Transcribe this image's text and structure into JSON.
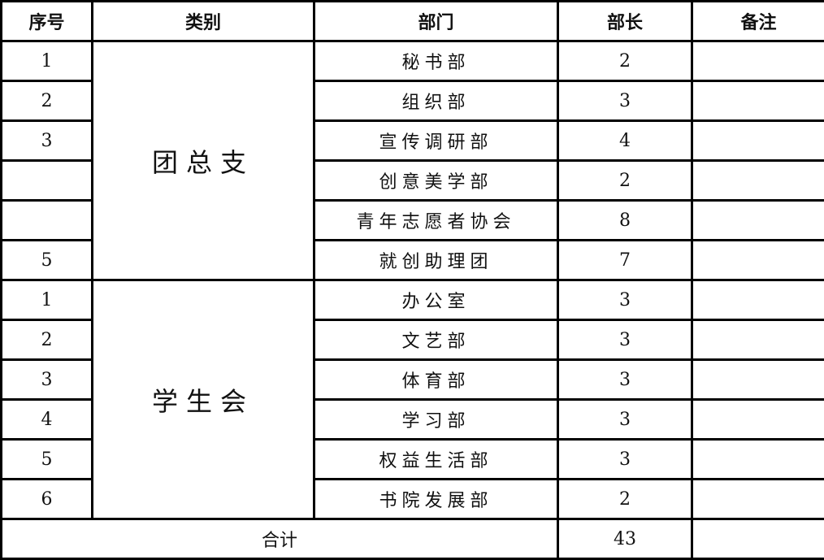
{
  "headers": [
    "序号",
    "类别",
    "部门",
    "部长",
    "备注"
  ],
  "groups": [
    {
      "category": "团总支",
      "rows": [
        {
          "no": "1",
          "dept": "秘书部",
          "heads": "2",
          "note": ""
        },
        {
          "no": "2",
          "dept": "组织部",
          "heads": "3",
          "note": ""
        },
        {
          "no": "3",
          "dept": "宣传调研部",
          "heads": "4",
          "note": ""
        },
        {
          "no": "",
          "dept": "创意美学部",
          "heads": "2",
          "note": ""
        },
        {
          "no": "",
          "dept": "青年志愿者协会",
          "heads": "8",
          "note": ""
        },
        {
          "no": "5",
          "dept": "就创助理团",
          "heads": "7",
          "note": ""
        }
      ]
    },
    {
      "category": "学生会",
      "rows": [
        {
          "no": "1",
          "dept": "办公室",
          "heads": "3",
          "note": ""
        },
        {
          "no": "2",
          "dept": "文艺部",
          "heads": "3",
          "note": ""
        },
        {
          "no": "3",
          "dept": "体育部",
          "heads": "3",
          "note": ""
        },
        {
          "no": "4",
          "dept": "学习部",
          "heads": "3",
          "note": ""
        },
        {
          "no": "5",
          "dept": "权益生活部",
          "heads": "3",
          "note": ""
        },
        {
          "no": "6",
          "dept": "书院发展部",
          "heads": "2",
          "note": ""
        }
      ]
    }
  ],
  "total": {
    "label": "合计",
    "value": "43",
    "note": ""
  }
}
